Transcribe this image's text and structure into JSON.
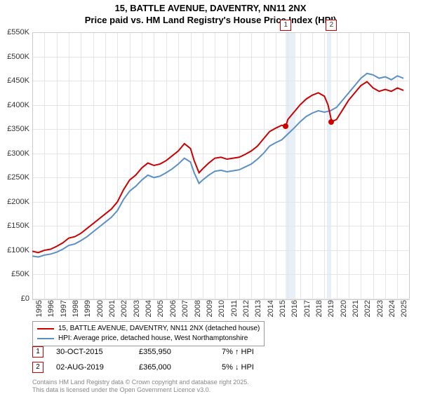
{
  "title_line1": "15, BATTLE AVENUE, DAVENTRY, NN11 2NX",
  "title_line2": "Price paid vs. HM Land Registry's House Price Index (HPI)",
  "chart": {
    "type": "line",
    "xlim": [
      1995,
      2025.9
    ],
    "ylim": [
      0,
      550
    ],
    "ytick_step": 50,
    "ytick_suffix": "K",
    "ytick_prefix": "£",
    "xtick_step": 1,
    "background_color": "#ffffff",
    "grid_color": "#e5e5e5",
    "highlight_color": "#d8e4f0",
    "series": [
      {
        "name": "price_paid",
        "label": "15, BATTLE AVENUE, DAVENTRY, NN11 2NX (detached house)",
        "color": "#cc0000",
        "width": 2,
        "data": [
          [
            1995,
            98
          ],
          [
            1995.5,
            95
          ],
          [
            1996,
            100
          ],
          [
            1996.5,
            102
          ],
          [
            1997,
            108
          ],
          [
            1997.5,
            115
          ],
          [
            1998,
            125
          ],
          [
            1998.5,
            128
          ],
          [
            1999,
            135
          ],
          [
            1999.5,
            145
          ],
          [
            2000,
            155
          ],
          [
            2000.5,
            165
          ],
          [
            2001,
            175
          ],
          [
            2001.5,
            185
          ],
          [
            2002,
            200
          ],
          [
            2002.5,
            225
          ],
          [
            2003,
            245
          ],
          [
            2003.5,
            255
          ],
          [
            2004,
            270
          ],
          [
            2004.5,
            280
          ],
          [
            2005,
            275
          ],
          [
            2005.5,
            278
          ],
          [
            2006,
            285
          ],
          [
            2006.5,
            295
          ],
          [
            2007,
            305
          ],
          [
            2007.5,
            320
          ],
          [
            2008,
            310
          ],
          [
            2008.3,
            285
          ],
          [
            2008.7,
            260
          ],
          [
            2009,
            268
          ],
          [
            2009.5,
            280
          ],
          [
            2010,
            290
          ],
          [
            2010.5,
            292
          ],
          [
            2011,
            288
          ],
          [
            2011.5,
            290
          ],
          [
            2012,
            292
          ],
          [
            2012.5,
            298
          ],
          [
            2013,
            305
          ],
          [
            2013.5,
            315
          ],
          [
            2014,
            330
          ],
          [
            2014.5,
            345
          ],
          [
            2015,
            352
          ],
          [
            2015.5,
            358
          ],
          [
            2015.83,
            356
          ],
          [
            2016,
            370
          ],
          [
            2016.5,
            385
          ],
          [
            2017,
            400
          ],
          [
            2017.5,
            412
          ],
          [
            2018,
            420
          ],
          [
            2018.5,
            425
          ],
          [
            2019,
            418
          ],
          [
            2019.3,
            400
          ],
          [
            2019.6,
            365
          ],
          [
            2020,
            370
          ],
          [
            2020.5,
            390
          ],
          [
            2021,
            410
          ],
          [
            2021.5,
            425
          ],
          [
            2022,
            440
          ],
          [
            2022.5,
            448
          ],
          [
            2023,
            435
          ],
          [
            2023.5,
            428
          ],
          [
            2024,
            432
          ],
          [
            2024.5,
            428
          ],
          [
            2025,
            435
          ],
          [
            2025.5,
            430
          ]
        ]
      },
      {
        "name": "hpi",
        "label": "HPI: Average price, detached house, West Northamptonshire",
        "color": "#5b8fc7",
        "width": 2,
        "data": [
          [
            1995,
            88
          ],
          [
            1995.5,
            86
          ],
          [
            1996,
            90
          ],
          [
            1996.5,
            92
          ],
          [
            1997,
            96
          ],
          [
            1997.5,
            102
          ],
          [
            1998,
            110
          ],
          [
            1998.5,
            113
          ],
          [
            1999,
            120
          ],
          [
            1999.5,
            128
          ],
          [
            2000,
            138
          ],
          [
            2000.5,
            148
          ],
          [
            2001,
            158
          ],
          [
            2001.5,
            168
          ],
          [
            2002,
            182
          ],
          [
            2002.5,
            205
          ],
          [
            2003,
            222
          ],
          [
            2003.5,
            232
          ],
          [
            2004,
            245
          ],
          [
            2004.5,
            255
          ],
          [
            2005,
            250
          ],
          [
            2005.5,
            253
          ],
          [
            2006,
            260
          ],
          [
            2006.5,
            268
          ],
          [
            2007,
            278
          ],
          [
            2007.5,
            290
          ],
          [
            2008,
            282
          ],
          [
            2008.3,
            260
          ],
          [
            2008.7,
            238
          ],
          [
            2009,
            245
          ],
          [
            2009.5,
            255
          ],
          [
            2010,
            263
          ],
          [
            2010.5,
            265
          ],
          [
            2011,
            262
          ],
          [
            2011.5,
            264
          ],
          [
            2012,
            266
          ],
          [
            2012.5,
            272
          ],
          [
            2013,
            278
          ],
          [
            2013.5,
            288
          ],
          [
            2014,
            300
          ],
          [
            2014.5,
            315
          ],
          [
            2015,
            322
          ],
          [
            2015.5,
            328
          ],
          [
            2016,
            340
          ],
          [
            2016.5,
            352
          ],
          [
            2017,
            365
          ],
          [
            2017.5,
            376
          ],
          [
            2018,
            383
          ],
          [
            2018.5,
            388
          ],
          [
            2019,
            385
          ],
          [
            2019.5,
            388
          ],
          [
            2020,
            395
          ],
          [
            2020.5,
            410
          ],
          [
            2021,
            425
          ],
          [
            2021.5,
            440
          ],
          [
            2022,
            455
          ],
          [
            2022.5,
            465
          ],
          [
            2023,
            462
          ],
          [
            2023.5,
            455
          ],
          [
            2024,
            458
          ],
          [
            2024.5,
            452
          ],
          [
            2025,
            460
          ],
          [
            2025.5,
            455
          ]
        ]
      }
    ],
    "sale_markers": [
      {
        "n": "1",
        "x": 2015.83,
        "y": 356,
        "band_start": 2015.83,
        "band_end": 2016.6
      },
      {
        "n": "2",
        "x": 2019.58,
        "y": 365,
        "band_start": 2019.2,
        "band_end": 2019.58
      }
    ]
  },
  "legend": {
    "series1_label": "15, BATTLE AVENUE, DAVENTRY, NN11 2NX (detached house)",
    "series2_label": "HPI: Average price, detached house, West Northamptonshire"
  },
  "sales": [
    {
      "n": "1",
      "date": "30-OCT-2015",
      "price": "£355,950",
      "pct": "7% ↑ HPI"
    },
    {
      "n": "2",
      "date": "02-AUG-2019",
      "price": "£365,000",
      "pct": "5% ↓ HPI"
    }
  ],
  "footer_line1": "Contains HM Land Registry data © Crown copyright and database right 2025.",
  "footer_line2": "This data is licensed under the Open Government Licence v3.0."
}
